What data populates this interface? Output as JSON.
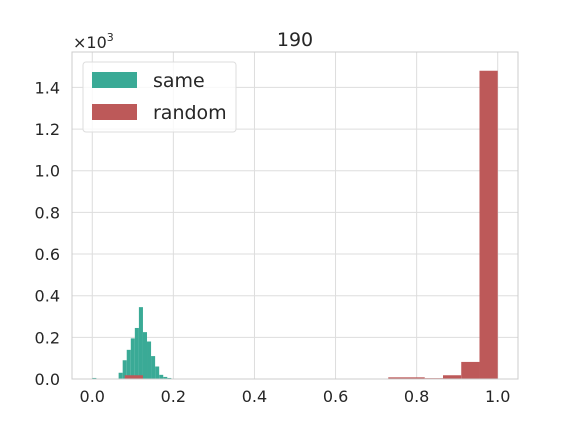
{
  "chart_data": {
    "type": "histogram",
    "title": "190",
    "xlabel": "",
    "ylabel": "",
    "y_scale_label": {
      "base": "×10",
      "exponent": "3"
    },
    "xlim": [
      -0.05,
      1.05
    ],
    "ylim": [
      0,
      1.57
    ],
    "x_ticks": [
      0.0,
      0.2,
      0.4,
      0.6,
      0.8,
      1.0
    ],
    "x_tick_labels": [
      "0.0",
      "0.2",
      "0.4",
      "0.6",
      "0.8",
      "1.0"
    ],
    "y_ticks": [
      0.0,
      0.2,
      0.4,
      0.6,
      0.8,
      1.0,
      1.2,
      1.4
    ],
    "y_tick_labels": [
      "0.0",
      "0.2",
      "0.4",
      "0.6",
      "0.8",
      "1.0",
      "1.2",
      "1.4"
    ],
    "grid": true,
    "legend_position": "top-left",
    "series": [
      {
        "name": "same",
        "color": "#3aaa96",
        "bins": [
          {
            "x0": 0.0,
            "x1": 0.01,
            "value": 0.005
          },
          {
            "x0": 0.065,
            "x1": 0.075,
            "value": 0.03
          },
          {
            "x0": 0.075,
            "x1": 0.085,
            "value": 0.09
          },
          {
            "x0": 0.085,
            "x1": 0.095,
            "value": 0.14
          },
          {
            "x0": 0.095,
            "x1": 0.105,
            "value": 0.195
          },
          {
            "x0": 0.105,
            "x1": 0.115,
            "value": 0.245
          },
          {
            "x0": 0.115,
            "x1": 0.125,
            "value": 0.345
          },
          {
            "x0": 0.125,
            "x1": 0.135,
            "value": 0.225
          },
          {
            "x0": 0.135,
            "x1": 0.145,
            "value": 0.18
          },
          {
            "x0": 0.145,
            "x1": 0.155,
            "value": 0.11
          },
          {
            "x0": 0.155,
            "x1": 0.165,
            "value": 0.06
          },
          {
            "x0": 0.165,
            "x1": 0.175,
            "value": 0.02
          },
          {
            "x0": 0.175,
            "x1": 0.185,
            "value": 0.01
          },
          {
            "x0": 0.185,
            "x1": 0.195,
            "value": 0.005
          }
        ]
      },
      {
        "name": "random",
        "color": "#bd5959",
        "bins": [
          {
            "x0": 0.08,
            "x1": 0.125,
            "value": 0.018
          },
          {
            "x0": 0.73,
            "x1": 0.775,
            "value": 0.008
          },
          {
            "x0": 0.775,
            "x1": 0.82,
            "value": 0.008
          },
          {
            "x0": 0.82,
            "x1": 0.865,
            "value": 0.004
          },
          {
            "x0": 0.865,
            "x1": 0.91,
            "value": 0.018
          },
          {
            "x0": 0.91,
            "x1": 0.955,
            "value": 0.082
          },
          {
            "x0": 0.955,
            "x1": 1.0,
            "value": 1.48
          }
        ]
      }
    ]
  }
}
